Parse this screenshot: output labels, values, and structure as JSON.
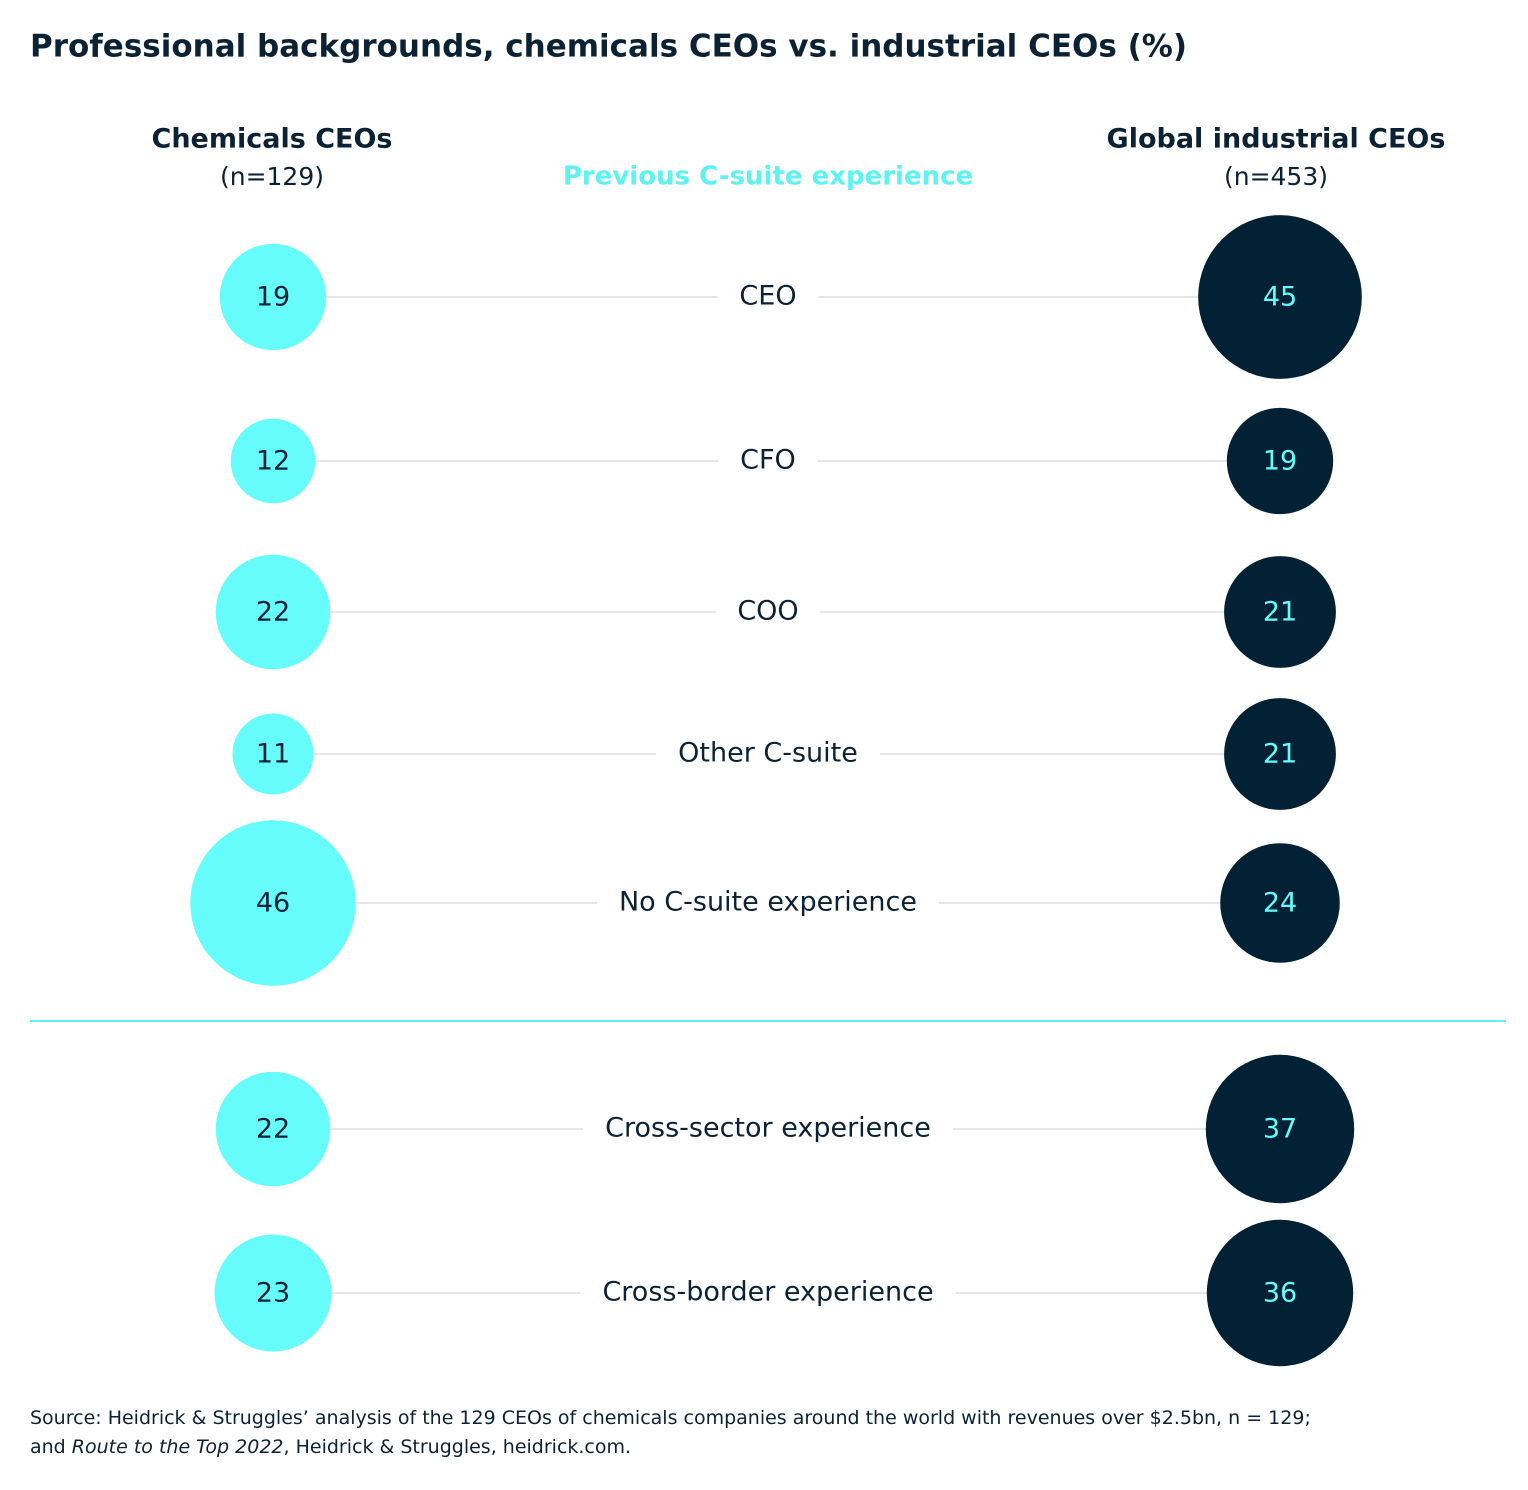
{
  "chart_data": {
    "type": "bubble",
    "title": "Professional backgrounds, chemicals CEOs vs. industrial CEOs (%)",
    "category_header": "Previous C-suite experience",
    "categories": [
      "CEO",
      "CFO",
      "COO",
      "Other C-suite",
      "No C-suite experience",
      "Cross-sector experience",
      "Cross-border experience"
    ],
    "series": [
      {
        "name": "Chemicals CEOs",
        "note": "(n=129)",
        "color": "#66fcfc",
        "label_color": "#0b2235",
        "values": [
          19,
          12,
          22,
          11,
          46,
          22,
          23
        ]
      },
      {
        "name": "Global industrial CEOs",
        "note": "(n=453)",
        "color": "#022135",
        "label_color": "#66fcfc",
        "values": [
          45,
          19,
          21,
          21,
          24,
          37,
          36
        ]
      }
    ],
    "source": [
      [
        "Source: Heidrick & Struggles’ analysis of the 129 CEOs of chemicals companies around the world with revenues over $2.5bn, n = 129;"
      ],
      [
        "and ",
        "Route to the Top 2022",
        ", Heidrick & Struggles, heidrick.com."
      ]
    ]
  }
}
